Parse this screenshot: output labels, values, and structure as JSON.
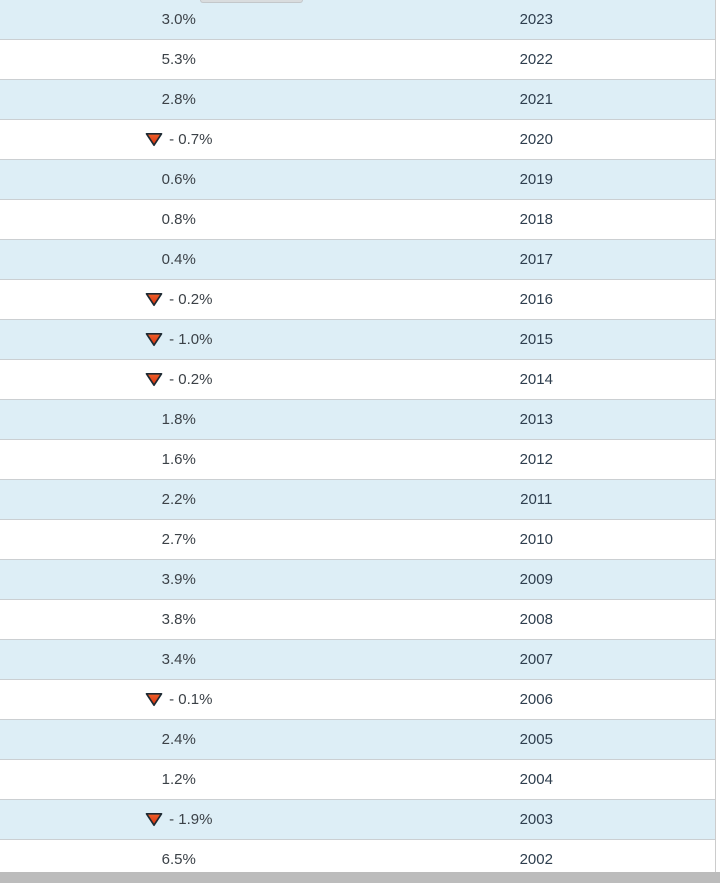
{
  "colors": {
    "row_alt_background": "#ddeef6",
    "row_border": "#cbcfd2",
    "value_text": "#3b4147",
    "year_text": "#2e3e4e",
    "triangle_fill_top": "#f0622a",
    "triangle_fill_bottom": "#d52f0f",
    "triangle_stroke": "#1d2a33",
    "scrollbar_thumb": "#bcbcbc"
  },
  "table": {
    "columns": [
      "value",
      "year"
    ],
    "rows": [
      {
        "value": "3.0%",
        "year": "2023",
        "negative": false
      },
      {
        "value": "5.3%",
        "year": "2022",
        "negative": false
      },
      {
        "value": "2.8%",
        "year": "2021",
        "negative": false
      },
      {
        "value": "- 0.7%",
        "year": "2020",
        "negative": true
      },
      {
        "value": "0.6%",
        "year": "2019",
        "negative": false
      },
      {
        "value": "0.8%",
        "year": "2018",
        "negative": false
      },
      {
        "value": "0.4%",
        "year": "2017",
        "negative": false
      },
      {
        "value": "- 0.2%",
        "year": "2016",
        "negative": true
      },
      {
        "value": "- 1.0%",
        "year": "2015",
        "negative": true
      },
      {
        "value": "- 0.2%",
        "year": "2014",
        "negative": true
      },
      {
        "value": "1.8%",
        "year": "2013",
        "negative": false
      },
      {
        "value": "1.6%",
        "year": "2012",
        "negative": false
      },
      {
        "value": "2.2%",
        "year": "2011",
        "negative": false
      },
      {
        "value": "2.7%",
        "year": "2010",
        "negative": false
      },
      {
        "value": "3.9%",
        "year": "2009",
        "negative": false
      },
      {
        "value": "3.8%",
        "year": "2008",
        "negative": false
      },
      {
        "value": "3.4%",
        "year": "2007",
        "negative": false
      },
      {
        "value": "- 0.1%",
        "year": "2006",
        "negative": true
      },
      {
        "value": "2.4%",
        "year": "2005",
        "negative": false
      },
      {
        "value": "1.2%",
        "year": "2004",
        "negative": false
      },
      {
        "value": "- 1.9%",
        "year": "2003",
        "negative": true
      },
      {
        "value": "6.5%",
        "year": "2002",
        "negative": false
      }
    ]
  },
  "chart_data": {
    "type": "table",
    "columns": [
      "percent_change",
      "year"
    ],
    "years": [
      2023,
      2022,
      2021,
      2020,
      2019,
      2018,
      2017,
      2016,
      2015,
      2014,
      2013,
      2012,
      2011,
      2010,
      2009,
      2008,
      2007,
      2006,
      2005,
      2004,
      2003,
      2002
    ],
    "values": [
      3.0,
      5.3,
      2.8,
      -0.7,
      0.6,
      0.8,
      0.4,
      -0.2,
      -1.0,
      -0.2,
      1.8,
      1.6,
      2.2,
      2.7,
      3.9,
      3.8,
      3.4,
      -0.1,
      2.4,
      1.2,
      -1.9,
      6.5
    ]
  }
}
